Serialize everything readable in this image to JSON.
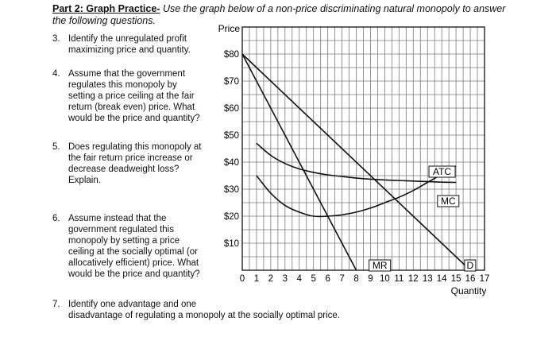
{
  "header": {
    "part_title": "Part 2: Graph Practice-",
    "instructions_line1": " Use the graph below of a non-price discriminating natural monopoly to answer",
    "instructions_line2": "the following questions."
  },
  "questions": [
    {
      "number": "3.",
      "lines": [
        "Identify the unregulated profit",
        "maximizing price and quantity."
      ]
    },
    {
      "number": "4.",
      "lines": [
        "Assume that the government",
        "regulates this monopoly by",
        "setting a price ceiling at the fair",
        "return (break even) price. What",
        "would be the price and quantity?"
      ]
    },
    {
      "number": "5.",
      "lines": [
        "Does regulating this monopoly at",
        "the fair return price increase or",
        "decrease deadweight loss?",
        "Explain."
      ]
    },
    {
      "number": "6.",
      "lines": [
        "Assume instead that the",
        "government regulated this",
        "monopoly by setting a price",
        "ceiling at the socially optimal (or",
        "allocatively efficient) price. What",
        "would be the price and quantity?"
      ]
    },
    {
      "number": "7.",
      "lines": [
        "Identify one advantage and one",
        "disadvantage of regulating a monopoly at the socially optimal price."
      ]
    }
  ],
  "chart_data": {
    "type": "line",
    "ylabel": "Price",
    "xlabel": "Quantity",
    "xlim": [
      0,
      17
    ],
    "ylim": [
      0,
      90
    ],
    "grid": true,
    "x_ticks": [
      "0",
      "1",
      "2",
      "3",
      "4",
      "5",
      "6",
      "7",
      "8",
      "9",
      "10",
      "11",
      "12",
      "13",
      "14",
      "15",
      "16",
      "17"
    ],
    "y_ticks": [
      "$10",
      "$20",
      "$30",
      "$40",
      "$50",
      "$60",
      "$70",
      "$80"
    ],
    "y_tick_values": [
      10,
      20,
      30,
      40,
      50,
      60,
      70,
      80
    ],
    "series": [
      {
        "name": "D",
        "x": [
          0,
          16
        ],
        "y": [
          80,
          0
        ]
      },
      {
        "name": "MR",
        "x": [
          0,
          8
        ],
        "y": [
          80,
          0
        ]
      },
      {
        "name": "ATC",
        "x": [
          1,
          2,
          3,
          4,
          5,
          6,
          7,
          8,
          9,
          10,
          11,
          12,
          13,
          14,
          15
        ],
        "y": [
          47,
          42.5,
          39.5,
          37.5,
          36.2,
          35.3,
          34.7,
          34.1,
          33.7,
          33.4,
          33.2,
          33,
          32.8,
          32.6,
          32.5
        ]
      },
      {
        "name": "MC",
        "x": [
          1,
          2,
          3,
          4,
          5,
          6,
          7,
          8,
          9,
          10,
          11,
          12,
          13,
          14,
          15
        ],
        "y": [
          35,
          28.5,
          24,
          21.5,
          20,
          20,
          20.5,
          21.5,
          23,
          25,
          27,
          29.5,
          32.5,
          35.5,
          38.5
        ]
      }
    ],
    "curve_labels": {
      "atc": "ATC",
      "mc": "MC",
      "mr": "MR",
      "d": "D"
    }
  }
}
